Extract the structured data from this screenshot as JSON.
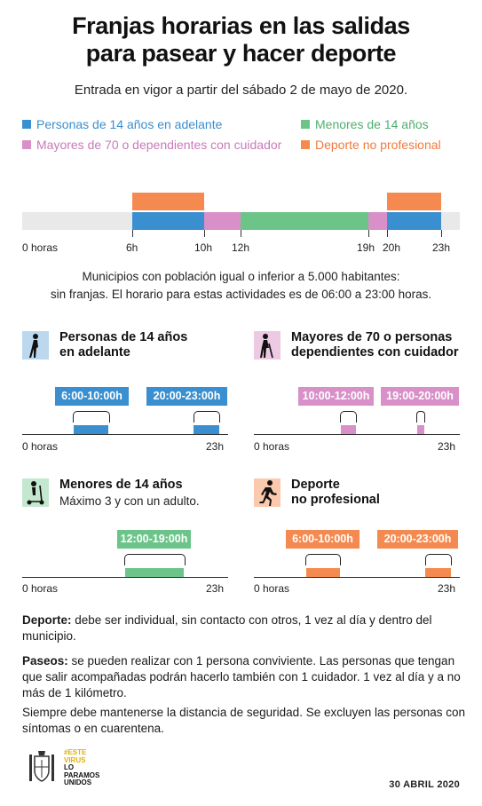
{
  "title_line1": "Franjas horarias en las salidas",
  "title_line2": "para pasear y hacer deporte",
  "subtitle": "Entrada en vigor a partir del sábado 2 de mayo de 2020.",
  "colors": {
    "blue": "#3a8fd0",
    "pink": "#d98fc8",
    "green": "#6cc489",
    "orange": "#f58a50",
    "gray": "#e9e9e9"
  },
  "legend": [
    {
      "label": "Personas de 14 años en adelante",
      "color": "#3a8fd0"
    },
    {
      "label": "Menores de 14 años",
      "color": "#6cc489"
    },
    {
      "label": "Mayores de 70 o dependientes con cuidador",
      "color": "#d98fc8"
    },
    {
      "label": "Deporte no profesional",
      "color": "#f58a50"
    }
  ],
  "timeline": {
    "ticks": [
      "0 horas",
      "6h",
      "10h",
      "12h",
      "19h",
      "20h",
      "23h"
    ],
    "bands": [
      {
        "group": "adults",
        "from": 6,
        "to": 10,
        "color": "#3a8fd0"
      },
      {
        "group": "adults",
        "from": 20,
        "to": 23,
        "color": "#3a8fd0"
      },
      {
        "group": "elderly",
        "from": 10,
        "to": 12,
        "color": "#d98fc8"
      },
      {
        "group": "elderly",
        "from": 19,
        "to": 20,
        "color": "#d98fc8"
      },
      {
        "group": "children",
        "from": 12,
        "to": 19,
        "color": "#6cc489"
      },
      {
        "group": "sport",
        "from": 6,
        "to": 10,
        "color": "#f58a50"
      },
      {
        "group": "sport",
        "from": 20,
        "to": 23,
        "color": "#f58a50"
      }
    ]
  },
  "note_line1": "Municipios con población igual o inferior a 5.000 habitantes:",
  "note_line2": "sin franjas. El horario para estas actividades es de 06:00 a 23:00 horas.",
  "panels": {
    "adults": {
      "title1": "Personas de 14 años",
      "title2": "en adelante",
      "icon": "walking-person-icon",
      "color": "#3a8fd0",
      "slots": [
        "6:00-10:00h",
        "20:00-23:00h"
      ],
      "axis_start": "0 horas",
      "axis_end": "23h"
    },
    "elderly": {
      "title1": "Mayores de 70 o personas",
      "title2": "dependientes con cuidador",
      "icon": "elderly-cane-icon",
      "color": "#d98fc8",
      "slots": [
        "10:00-12:00h",
        "19:00-20:00h"
      ],
      "axis_start": "0 horas",
      "axis_end": "23h"
    },
    "children": {
      "title1": "Menores de 14 años",
      "sub": "Máximo 3 y con un adulto.",
      "icon": "scooter-child-icon",
      "color": "#6cc489",
      "slots": [
        "12:00-19:00h"
      ],
      "axis_start": "0 horas",
      "axis_end": "23h"
    },
    "sport": {
      "title1": "Deporte",
      "title2": "no profesional",
      "icon": "runner-icon",
      "color": "#f58a50",
      "slots": [
        "6:00-10:00h",
        "20:00-23:00h"
      ],
      "axis_start": "0 horas",
      "axis_end": "23h"
    }
  },
  "footer": {
    "deporte_label": "Deporte:",
    "deporte_text": " debe ser individual, sin contacto con otros, 1 vez al día y dentro del municipio.",
    "paseos_label": "Paseos:",
    "paseos_text": " se pueden realizar con 1 persona conviviente. Las personas que tengan que salir acompañadas podrán hacerlo también con 1 cuidador. 1 vez al día y a no más de 1 kilómetro.",
    "safety_text": "Siempre debe mantenerse la distancia de seguridad. Se excluyen las personas con síntomas o en cuarentena."
  },
  "logo": {
    "line1": "#ESTE",
    "line2": "VIRUS",
    "line3": "LO",
    "line4": "PARAMOS",
    "line5": "UNIDOS"
  },
  "date": "30 ABRIL 2020"
}
